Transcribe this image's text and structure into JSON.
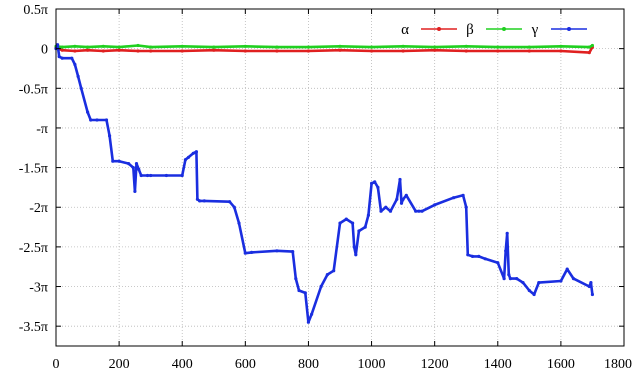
{
  "chart_data": {
    "type": "line",
    "title": "",
    "xlabel": "",
    "ylabel": "",
    "xlim": [
      0,
      1800
    ],
    "ylim": [
      -3.75,
      0.5
    ],
    "y_unit": "π",
    "grid": true,
    "legend_position": "top-right",
    "x_ticks": [
      0,
      200,
      400,
      600,
      800,
      1000,
      1200,
      1400,
      1600,
      1800
    ],
    "x_tick_labels": [
      "0",
      "200",
      "400",
      "600",
      "800",
      "1000",
      "1200",
      "1400",
      "1600",
      "1800"
    ],
    "y_ticks": [
      0.5,
      0,
      -0.5,
      -1,
      -1.5,
      -2,
      -2.5,
      -3,
      -3.5
    ],
    "y_tick_labels": [
      "0.5π",
      "0",
      "-0.5π",
      "-π",
      "-1.5π",
      "-2π",
      "-2.5π",
      "-3π",
      "-3.5π"
    ],
    "series": [
      {
        "name": "α",
        "color": "#e02020",
        "x": [
          0,
          20,
          60,
          100,
          150,
          200,
          260,
          300,
          400,
          500,
          600,
          700,
          800,
          900,
          1000,
          1100,
          1200,
          1300,
          1400,
          1500,
          1600,
          1690,
          1700
        ],
        "y": [
          0.01,
          -0.02,
          -0.03,
          -0.02,
          -0.03,
          -0.02,
          -0.03,
          -0.03,
          -0.03,
          -0.02,
          -0.03,
          -0.03,
          -0.03,
          -0.02,
          -0.03,
          -0.03,
          -0.02,
          -0.03,
          -0.03,
          -0.03,
          -0.03,
          -0.05,
          0.02
        ]
      },
      {
        "name": "β",
        "color": "#20d020",
        "x": [
          0,
          20,
          60,
          100,
          150,
          200,
          260,
          300,
          400,
          500,
          600,
          700,
          800,
          900,
          1000,
          1100,
          1200,
          1300,
          1400,
          1500,
          1600,
          1690,
          1700
        ],
        "y": [
          0.03,
          0.02,
          0.03,
          0.02,
          0.03,
          0.02,
          0.04,
          0.02,
          0.03,
          0.02,
          0.03,
          0.02,
          0.02,
          0.03,
          0.02,
          0.03,
          0.02,
          0.03,
          0.02,
          0.02,
          0.03,
          0.02,
          0.04
        ]
      },
      {
        "name": "γ",
        "color": "#1a2ee0",
        "x": [
          0,
          5,
          10,
          20,
          50,
          60,
          70,
          80,
          100,
          110,
          130,
          160,
          170,
          180,
          200,
          230,
          245,
          250,
          255,
          262,
          270,
          290,
          300,
          350,
          400,
          410,
          420,
          435,
          445,
          448,
          455,
          470,
          550,
          565,
          580,
          600,
          620,
          700,
          750,
          760,
          770,
          790,
          800,
          810,
          840,
          860,
          880,
          900,
          920,
          940,
          945,
          950,
          960,
          980,
          990,
          1000,
          1010,
          1020,
          1030,
          1045,
          1060,
          1080,
          1090,
          1095,
          1100,
          1110,
          1140,
          1150,
          1160,
          1200,
          1260,
          1290,
          1300,
          1305,
          1320,
          1340,
          1360,
          1400,
          1420,
          1425,
          1430,
          1435,
          1440,
          1460,
          1480,
          1500,
          1515,
          1530,
          1600,
          1620,
          1640,
          1690,
          1695,
          1700
        ],
        "y": [
          0.0,
          0.05,
          -0.1,
          -0.12,
          -0.12,
          -0.2,
          -0.35,
          -0.5,
          -0.8,
          -0.9,
          -0.9,
          -0.9,
          -1.1,
          -1.42,
          -1.42,
          -1.45,
          -1.5,
          -1.8,
          -1.45,
          -1.52,
          -1.6,
          -1.6,
          -1.6,
          -1.6,
          -1.6,
          -1.4,
          -1.37,
          -1.32,
          -1.3,
          -1.9,
          -1.92,
          -1.92,
          -1.93,
          -2.0,
          -2.2,
          -2.58,
          -2.57,
          -2.55,
          -2.56,
          -2.9,
          -3.05,
          -3.08,
          -3.45,
          -3.35,
          -3.0,
          -2.85,
          -2.8,
          -2.2,
          -2.15,
          -2.2,
          -2.5,
          -2.6,
          -2.3,
          -2.25,
          -2.1,
          -1.7,
          -1.68,
          -1.75,
          -2.05,
          -2.0,
          -2.05,
          -1.9,
          -1.65,
          -1.95,
          -1.9,
          -1.85,
          -2.05,
          -2.05,
          -2.05,
          -1.97,
          -1.88,
          -1.85,
          -2.0,
          -2.6,
          -2.62,
          -2.62,
          -2.65,
          -2.7,
          -2.9,
          -2.55,
          -2.33,
          -2.85,
          -2.9,
          -2.9,
          -2.95,
          -3.05,
          -3.1,
          -2.95,
          -2.93,
          -2.78,
          -2.9,
          -3.0,
          -2.95,
          -3.1
        ]
      }
    ]
  }
}
